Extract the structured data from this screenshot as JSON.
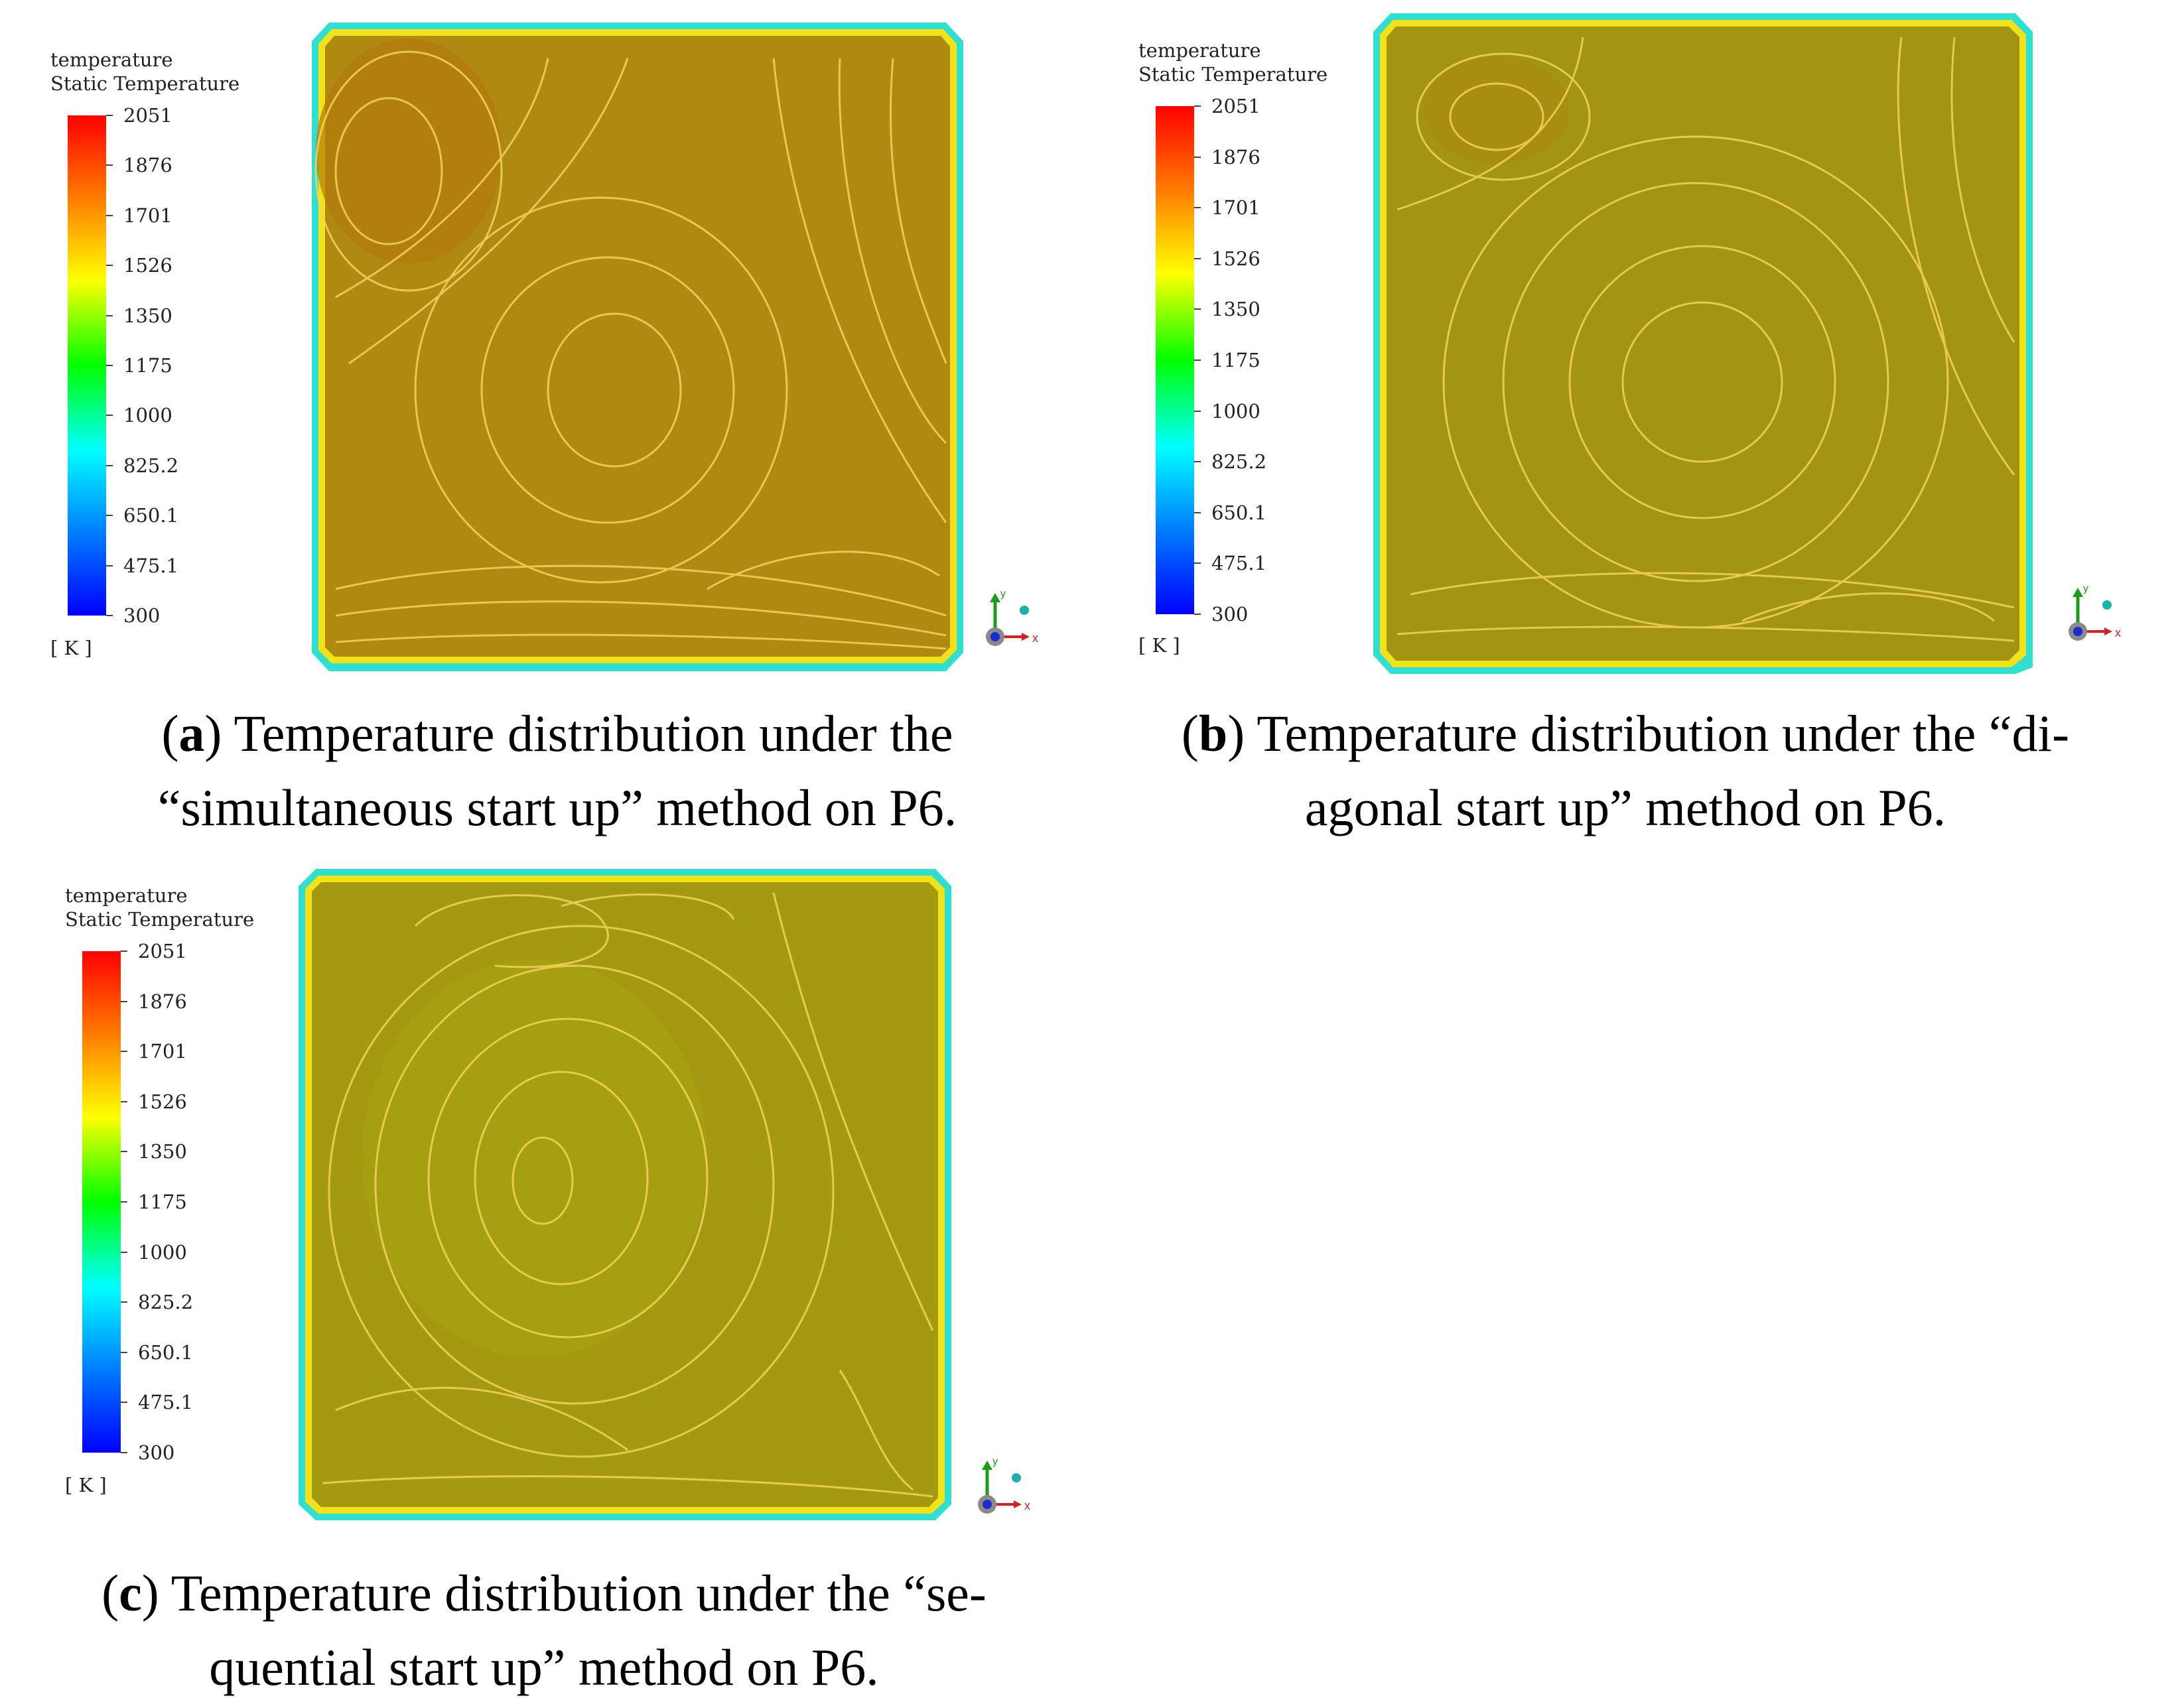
{
  "legend": {
    "title_line1": "temperature",
    "title_line2": "Static Temperature",
    "ticks": [
      "2051",
      "1876",
      "1701",
      "1526",
      "1350",
      "1175",
      "1000",
      "825.2",
      "650.1",
      "475.1",
      "300"
    ],
    "unit": "[ K ]",
    "colors": [
      "#ff0000",
      "#ff7f00",
      "#ffff00",
      "#00ff00",
      "#00ffff",
      "#0080ff",
      "#0000ff"
    ]
  },
  "panels": [
    {
      "letter": "a",
      "caption_line1": "Temperature distribution under the",
      "caption_line2": "“simultaneous start up” method on P6.",
      "fill_color": "#b08a10"
    },
    {
      "letter": "b",
      "caption_line1": "Temperature distribution under the “di-",
      "caption_line2": "agonal start up” method on P6.",
      "fill_color": "#a39512"
    },
    {
      "letter": "c",
      "caption_line1": "Temperature distribution under the “se-",
      "caption_line2": "quential start up” method on P6.",
      "fill_color": "#a49a12"
    }
  ],
  "axis_triad": {
    "x_label": "x",
    "y_label": "y"
  }
}
